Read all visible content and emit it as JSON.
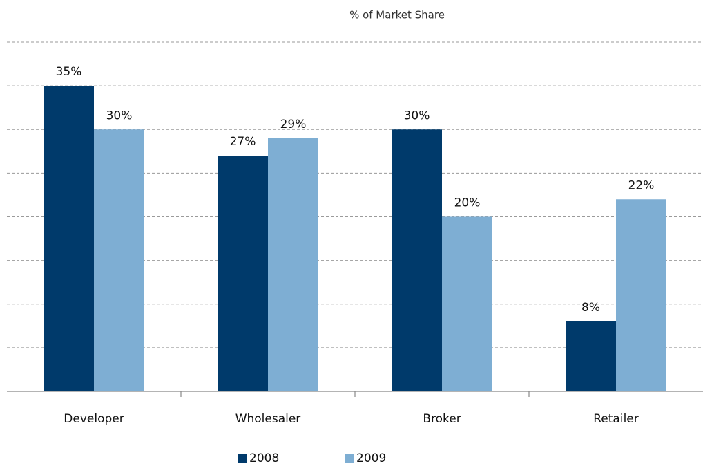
{
  "chart_data": {
    "type": "bar",
    "title": "% of Market Share",
    "categories": [
      "Developer",
      "Wholesaler",
      "Broker",
      "Retailer"
    ],
    "series": [
      {
        "name": "2008",
        "color": "#003a6b",
        "values": [
          35,
          27,
          30,
          8
        ],
        "value_labels": [
          "35%",
          "27%",
          "30%",
          "8%"
        ]
      },
      {
        "name": "2009",
        "color": "#7eaed3",
        "values": [
          30,
          29,
          20,
          22
        ],
        "value_labels": [
          "30%",
          "29%",
          "20%",
          "22%"
        ]
      }
    ],
    "ylim": [
      0,
      40
    ],
    "yticks": [
      5,
      10,
      15,
      20,
      25,
      30,
      35,
      40
    ],
    "grid": true,
    "legend": "bottom"
  }
}
